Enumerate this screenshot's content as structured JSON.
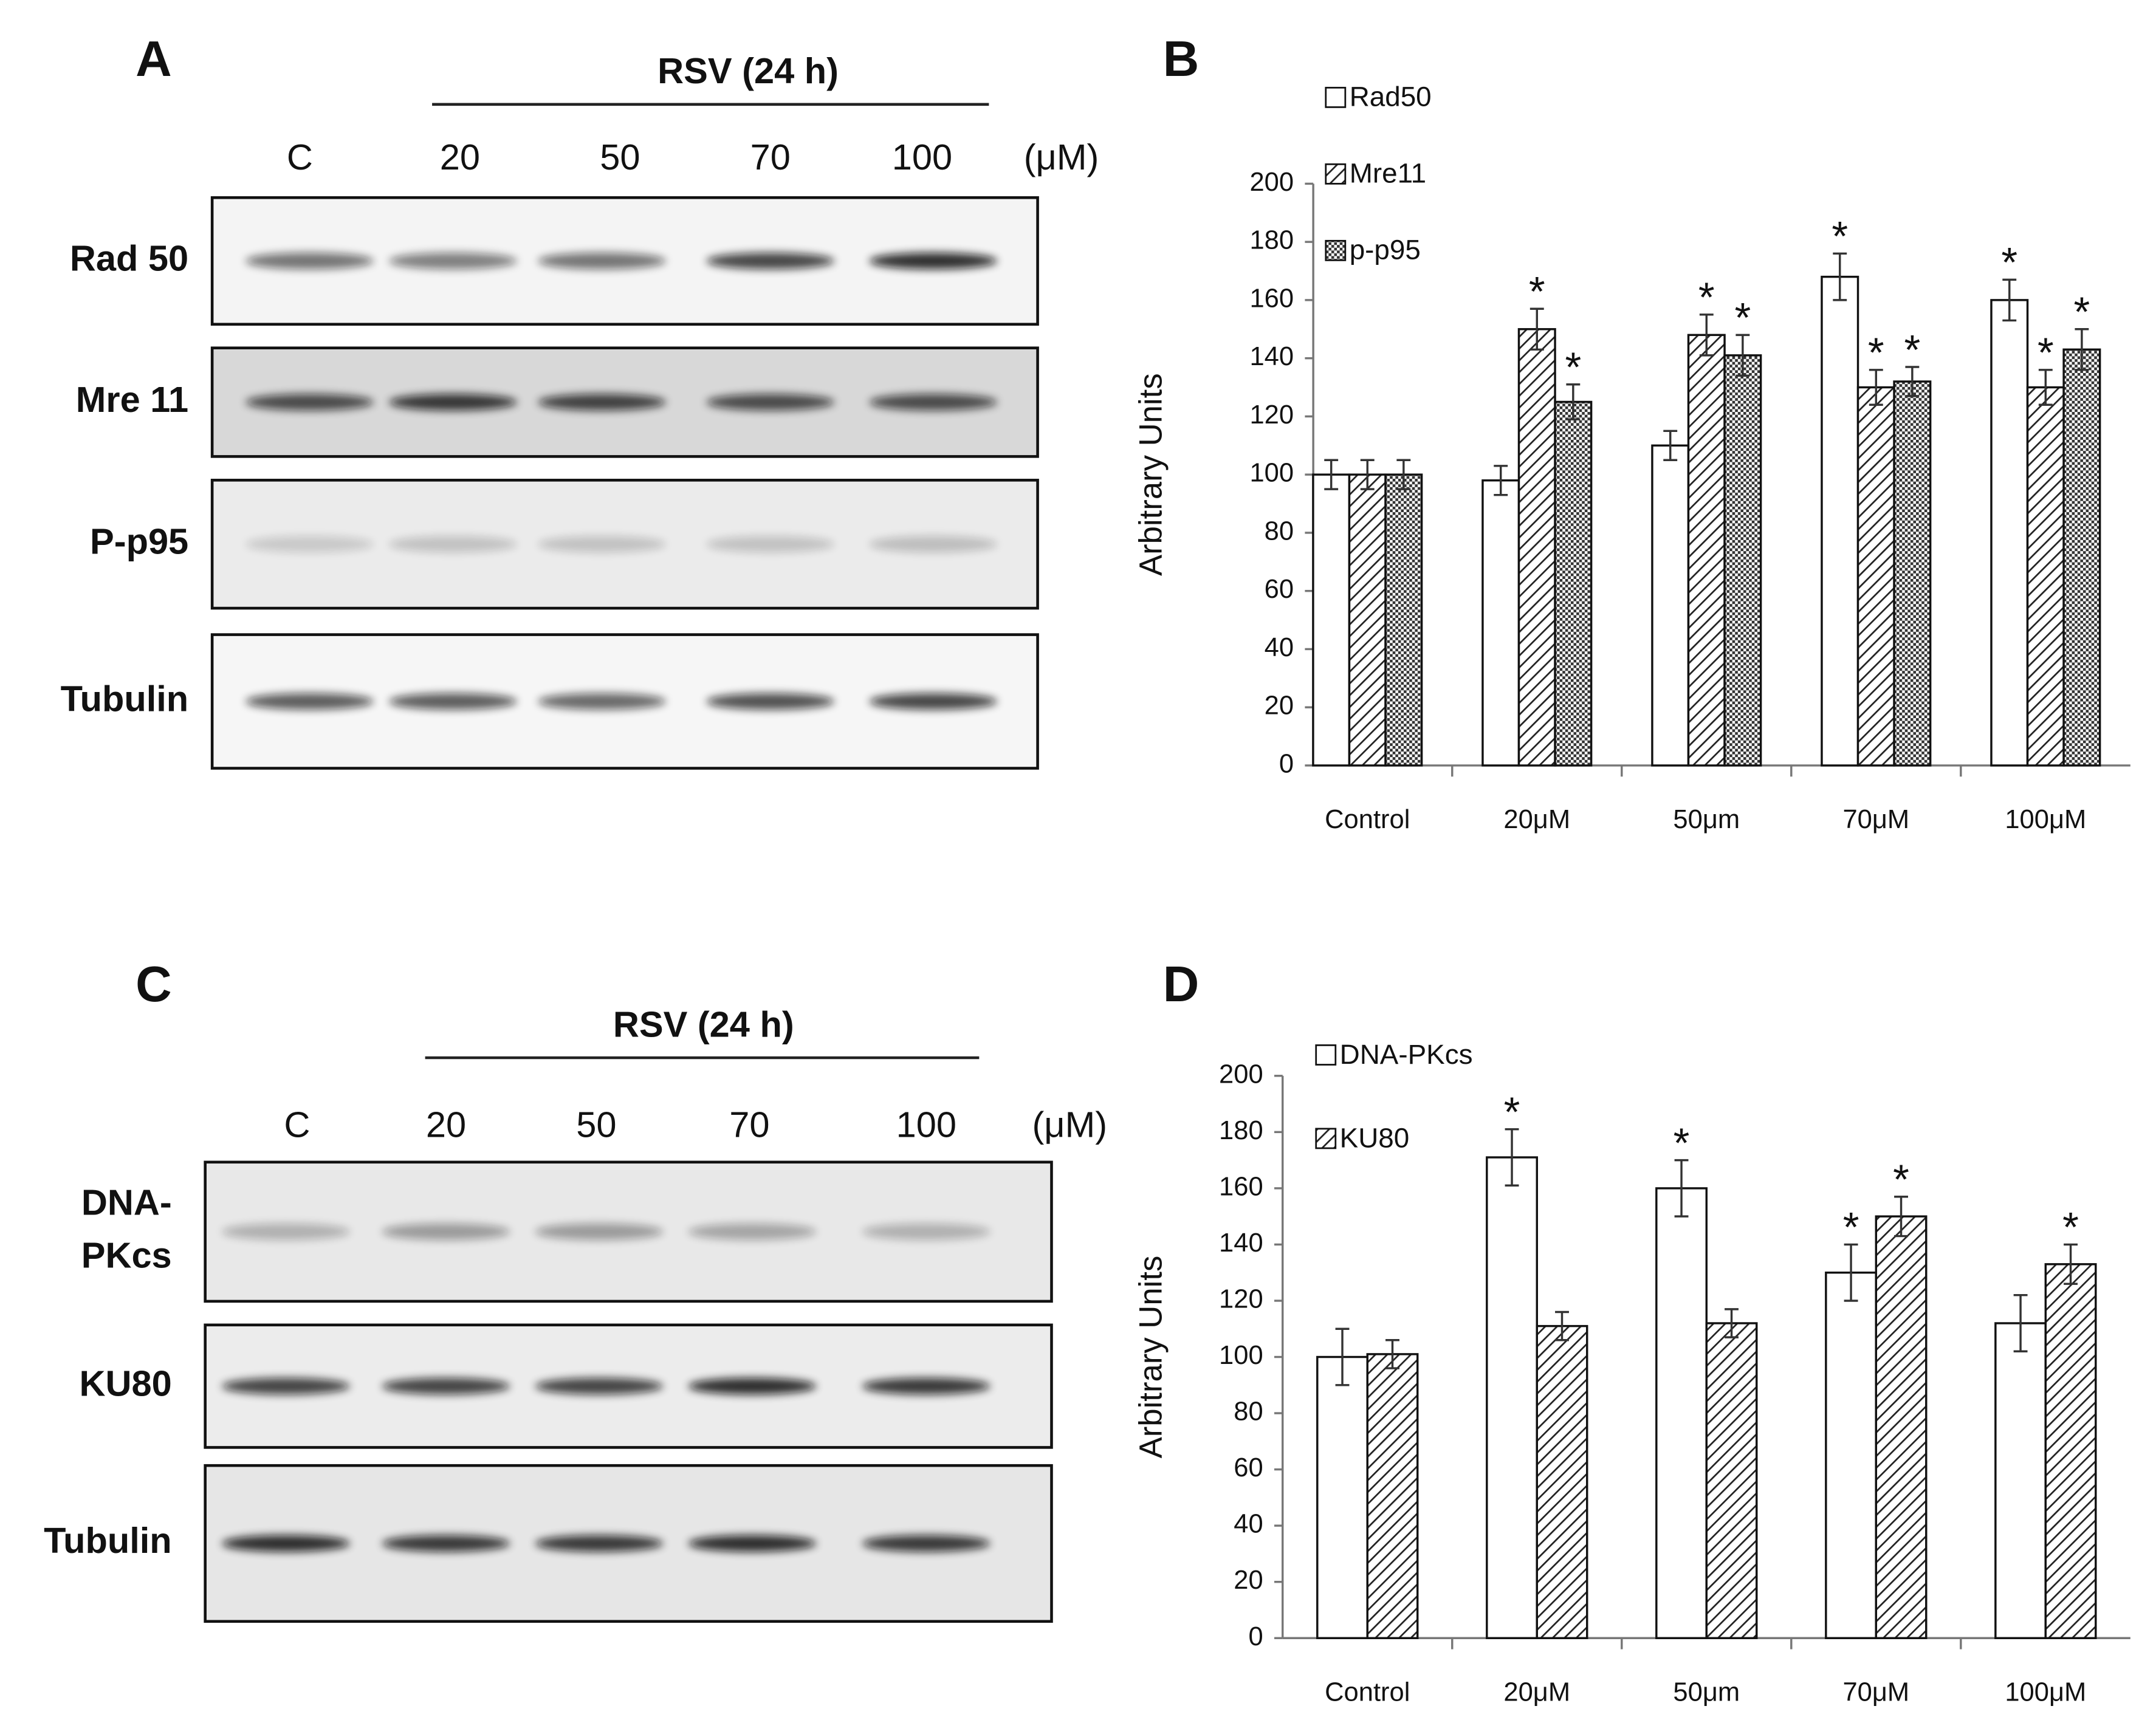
{
  "panels": [
    "A",
    "B",
    "C",
    "D"
  ],
  "blots": [
    {
      "treatment": "RSV (24 h)",
      "lanes": [
        "C",
        "20",
        "50",
        "70",
        "100"
      ],
      "unit": "(μM)",
      "rows": [
        [
          "Rad 50"
        ],
        [
          "Mre 11"
        ],
        [
          "P-p95"
        ],
        [
          "Tubulin"
        ]
      ]
    },
    {
      "treatment": "RSV (24 h)",
      "lanes": [
        "C",
        "20",
        "50",
        "70",
        "100"
      ],
      "unit": "(μM)",
      "rows": [
        [
          "DNA-",
          "PKcs"
        ],
        [
          "KU80"
        ],
        [
          "Tubulin"
        ]
      ]
    }
  ],
  "chart_data": [
    {
      "type": "bar",
      "y_label": "Arbitrary Units",
      "categories": [
        "Control",
        "20μM",
        "50μm",
        "70μM",
        "100μM"
      ],
      "ylim": [
        0,
        200
      ],
      "yticks": [
        0,
        20,
        40,
        60,
        80,
        100,
        120,
        140,
        160,
        180,
        200
      ],
      "series": [
        {
          "name": "Rad50",
          "pattern": "none",
          "values": [
            100,
            98,
            110,
            168,
            160
          ],
          "errors": [
            5,
            5,
            5,
            8,
            7
          ],
          "annotations": [
            null,
            null,
            null,
            "*",
            "*"
          ]
        },
        {
          "name": "Mre11",
          "pattern": "hatch",
          "values": [
            100,
            150,
            148,
            130,
            130
          ],
          "errors": [
            5,
            7,
            7,
            6,
            6
          ],
          "annotations": [
            null,
            "*",
            "*",
            "*",
            "*"
          ]
        },
        {
          "name": "p-p95",
          "pattern": "crosshatch",
          "values": [
            100,
            125,
            141,
            132,
            143
          ],
          "errors": [
            5,
            6,
            7,
            5,
            7
          ],
          "annotations": [
            null,
            "*",
            "*",
            "*",
            "*"
          ]
        }
      ]
    },
    {
      "type": "bar",
      "y_label": "Arbitrary Units",
      "categories": [
        "Control",
        "20μM",
        "50μm",
        "70μM",
        "100μM"
      ],
      "ylim": [
        0,
        200
      ],
      "yticks": [
        0,
        20,
        40,
        60,
        80,
        100,
        120,
        140,
        160,
        180,
        200
      ],
      "series": [
        {
          "name": "DNA-PKcs",
          "pattern": "none",
          "values": [
            100,
            171,
            160,
            130,
            112
          ],
          "errors": [
            10,
            10,
            10,
            10,
            10
          ],
          "annotations": [
            null,
            "*",
            "*",
            "*",
            null
          ]
        },
        {
          "name": "KU80",
          "pattern": "hatch",
          "values": [
            101,
            111,
            112,
            150,
            133
          ],
          "errors": [
            5,
            5,
            5,
            7,
            7
          ],
          "annotations": [
            null,
            null,
            null,
            "*",
            "*"
          ]
        }
      ]
    }
  ]
}
